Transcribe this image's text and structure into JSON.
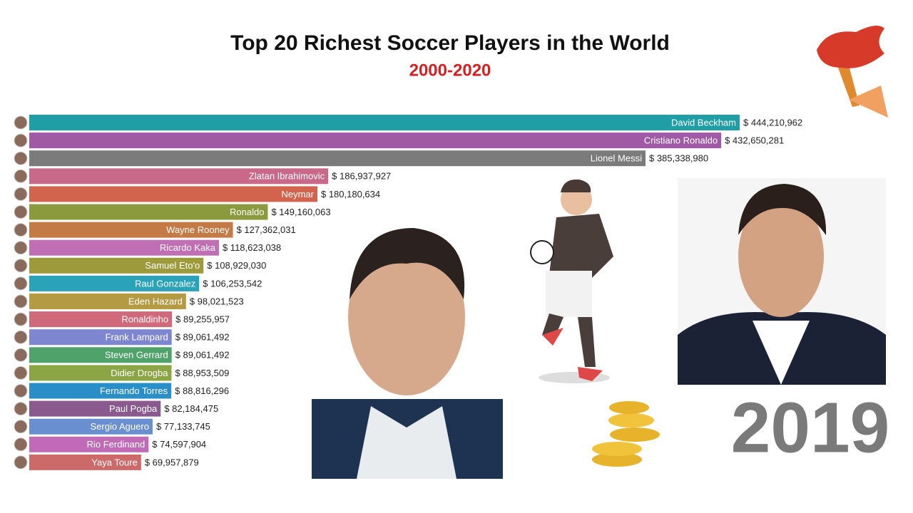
{
  "chart_data": {
    "type": "bar",
    "orientation": "horizontal",
    "title": "Top 20 Richest Soccer Players in the World",
    "subtitle": "2000-2020",
    "period": "2019",
    "categories": [
      "David Beckham",
      "Cristiano Ronaldo",
      "Lionel Messi",
      "Zlatan Ibrahimovic",
      "Neymar",
      "Ronaldo",
      "Wayne Rooney",
      "Ricardo Kaka",
      "Samuel Eto'o",
      "Raul Gonzalez",
      "Eden Hazard",
      "Ronaldinho",
      "Frank Lampard",
      "Steven Gerrard",
      "Didier Drogba",
      "Fernando Torres",
      "Paul Pogba",
      "Sergio Aguero",
      "Rio Ferdinand",
      "Yaya Toure"
    ],
    "values": [
      444210962,
      432650281,
      385338980,
      186937927,
      180180634,
      149160063,
      127362031,
      118623038,
      108929030,
      106253542,
      98021523,
      89255957,
      89061492,
      89061492,
      88953509,
      88816296,
      82184475,
      77133745,
      74597904,
      69957879
    ],
    "value_labels": [
      "$ 444,210,962",
      "$ 432,650,281",
      "$ 385,338,980",
      "$ 186,937,927",
      "$ 180,180,634",
      "$ 149,160,063",
      "$ 127,362,031",
      "$ 118,623,038",
      "$ 108,929,030",
      "$ 106,253,542",
      "$ 98,021,523",
      "$ 89,255,957",
      "$ 89,061,492",
      "$ 89,061,492",
      "$ 88,953,509",
      "$ 88,816,296",
      "$ 82,184,475",
      "$ 77,133,745",
      "$ 74,597,904",
      "$ 69,957,879"
    ],
    "colors": [
      "#1f9ea6",
      "#a05aa5",
      "#7b7b7b",
      "#c9698a",
      "#d2644e",
      "#8a9a3c",
      "#c47a45",
      "#c06fb5",
      "#9c9a3a",
      "#2aa3b8",
      "#b59a44",
      "#d06a7a",
      "#7f86d0",
      "#4fa36a",
      "#8ba545",
      "#2a8fc9",
      "#8a5a8e",
      "#6a8fd0",
      "#c06ab8",
      "#cc6a6a"
    ]
  }
}
